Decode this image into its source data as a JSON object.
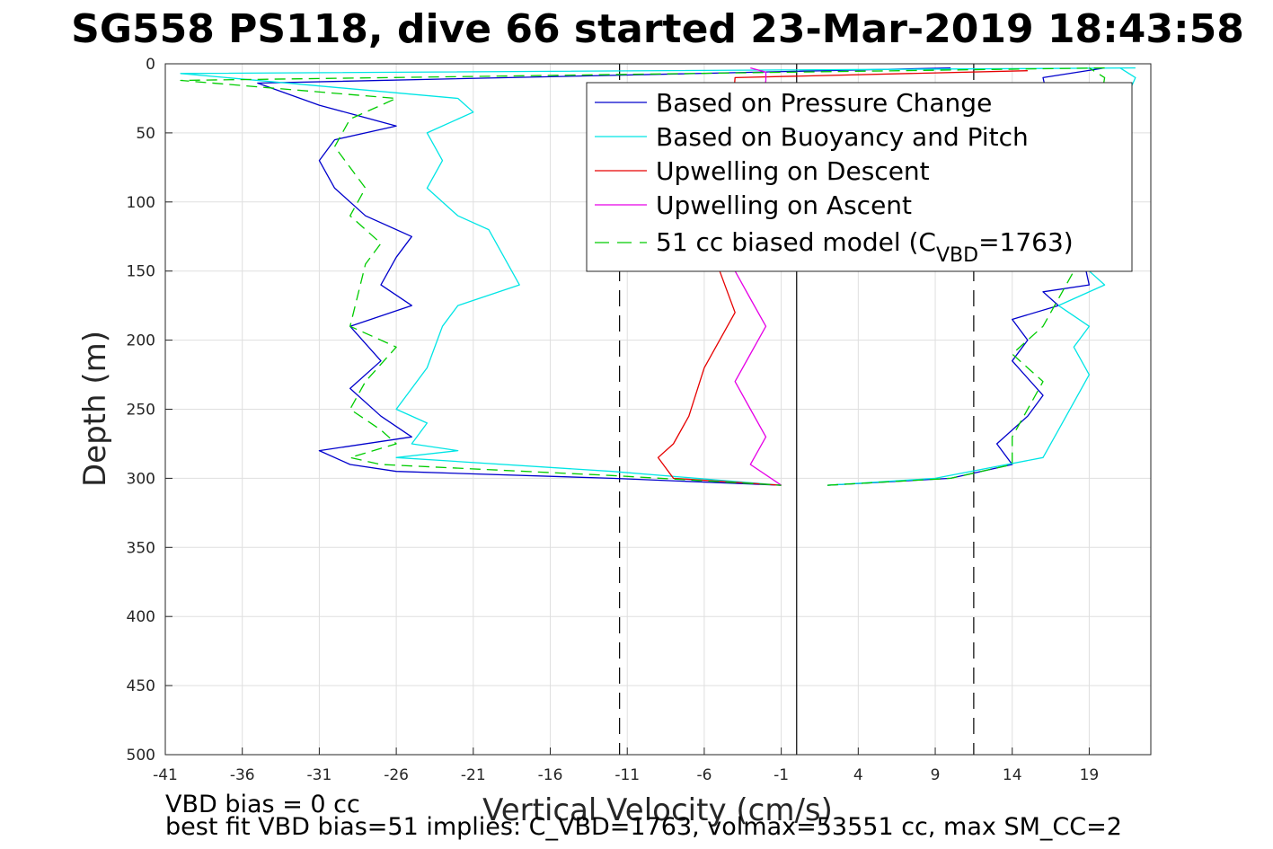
{
  "chart_data": {
    "type": "line",
    "title": "SG558 PS118, dive 66 started 23-Mar-2019 18:43:58",
    "xlabel": "Vertical Velocity (cm/s)",
    "ylabel": "Depth (m)",
    "xlim": [
      -41,
      23
    ],
    "ylim": [
      0,
      500
    ],
    "y_reversed": true,
    "grid": true,
    "xticks": [
      -41,
      -36,
      -31,
      -26,
      -21,
      -16,
      -11,
      -6,
      -1,
      4,
      9,
      14,
      19
    ],
    "yticks": [
      0,
      50,
      100,
      150,
      200,
      250,
      300,
      350,
      400,
      450,
      500
    ],
    "reference_lines": [
      {
        "x": -11.5,
        "style": "dashed",
        "color": "#000000"
      },
      {
        "x": 0,
        "style": "solid",
        "color": "#000000"
      },
      {
        "x": 11.5,
        "style": "dashed",
        "color": "#000000"
      }
    ],
    "legend_position": "top-right",
    "series": [
      {
        "name": "Based on Pressure Change",
        "color": "#0000cc",
        "style": "solid",
        "descent": {
          "x": [
            10,
            -35,
            -31,
            -26,
            -30,
            -31,
            -30,
            -28,
            -25,
            -26,
            -27,
            -25,
            -29,
            -27,
            -29,
            -27,
            -25,
            -31,
            -29,
            -26,
            -12,
            -1
          ],
          "y": [
            3,
            14,
            30,
            45,
            55,
            70,
            90,
            110,
            125,
            140,
            160,
            175,
            190,
            215,
            235,
            255,
            270,
            280,
            290,
            295,
            300,
            305
          ]
        },
        "ascent": {
          "x": [
            2,
            10,
            14,
            13,
            15,
            16,
            14,
            15,
            14,
            17,
            16,
            19,
            16,
            20
          ],
          "y": [
            305,
            300,
            290,
            275,
            255,
            240,
            215,
            200,
            185,
            175,
            165,
            160,
            10,
            3
          ]
        }
      },
      {
        "name": "Based on Buoyancy and Pitch",
        "color": "#00e5e5",
        "style": "solid",
        "descent": {
          "x": [
            22,
            -40,
            -22,
            -21,
            -24,
            -23,
            -24,
            -22,
            -20,
            -18,
            -22,
            -23,
            -24,
            -26,
            -24,
            -25,
            -22,
            -26,
            -12,
            -1
          ],
          "y": [
            3,
            7,
            25,
            35,
            50,
            70,
            90,
            110,
            120,
            160,
            175,
            190,
            220,
            250,
            260,
            275,
            280,
            285,
            295,
            305
          ]
        },
        "ascent": {
          "x": [
            2,
            9,
            16,
            17,
            18,
            19,
            18,
            19,
            17,
            20,
            19,
            21,
            22,
            21
          ],
          "y": [
            305,
            300,
            285,
            265,
            245,
            225,
            205,
            190,
            175,
            160,
            150,
            35,
            10,
            3
          ]
        }
      },
      {
        "name": "Upwelling on Descent",
        "color": "#e60000",
        "style": "solid",
        "descent": {
          "x": [
            15,
            -4,
            -5,
            -4,
            -6,
            -7,
            -8,
            -9,
            -8,
            -1
          ],
          "y": [
            5,
            10,
            150,
            180,
            220,
            255,
            275,
            285,
            300,
            305
          ]
        },
        "ascent": {
          "x": [],
          "y": []
        }
      },
      {
        "name": "Upwelling on Ascent",
        "color": "#e600e6",
        "style": "solid",
        "descent": {
          "x": [],
          "y": []
        },
        "ascent": {
          "x": [
            -1,
            -3,
            -2,
            -3,
            -4,
            -3,
            -2,
            -3,
            -4,
            -2,
            -2,
            -3
          ],
          "y": [
            305,
            290,
            270,
            250,
            230,
            210,
            190,
            170,
            150,
            12,
            6,
            3
          ]
        }
      },
      {
        "name": "51 cc biased model (C_VBD=1763)",
        "color": "#00cc00",
        "style": "dashed",
        "descent": {
          "x": [
            20,
            -40,
            -26,
            -29,
            -30,
            -28,
            -29,
            -27,
            -28,
            -29,
            -26,
            -28,
            -29,
            -27,
            -26,
            -29,
            -27,
            -12,
            -1
          ],
          "y": [
            3,
            12,
            25,
            40,
            60,
            90,
            110,
            130,
            145,
            190,
            205,
            230,
            250,
            265,
            275,
            285,
            290,
            298,
            305
          ]
        },
        "ascent": {
          "x": [
            2,
            10,
            14,
            14,
            15,
            16,
            14,
            16,
            17,
            18,
            20,
            19
          ],
          "y": [
            305,
            300,
            290,
            270,
            250,
            230,
            210,
            190,
            170,
            150,
            10,
            3
          ]
        }
      }
    ]
  },
  "legend": {
    "items": [
      {
        "label": "Based on Pressure Change",
        "color": "#0000cc",
        "dash": ""
      },
      {
        "label": "Based on Buoyancy and Pitch",
        "color": "#00e5e5",
        "dash": ""
      },
      {
        "label": "Upwelling on Descent",
        "color": "#e60000",
        "dash": ""
      },
      {
        "label": "Upwelling on Ascent",
        "color": "#e600e6",
        "dash": ""
      }
    ],
    "model_label_prefix": "51 cc biased model (C",
    "model_label_sub": "VBD",
    "model_label_suffix": "=1763)",
    "model_color": "#00cc00"
  },
  "footer": {
    "line1": "VBD bias = 0 cc",
    "line2": "best fit VBD bias=51 implies: C_VBD=1763, volmax=53551 cc, max SM_CC=2"
  }
}
